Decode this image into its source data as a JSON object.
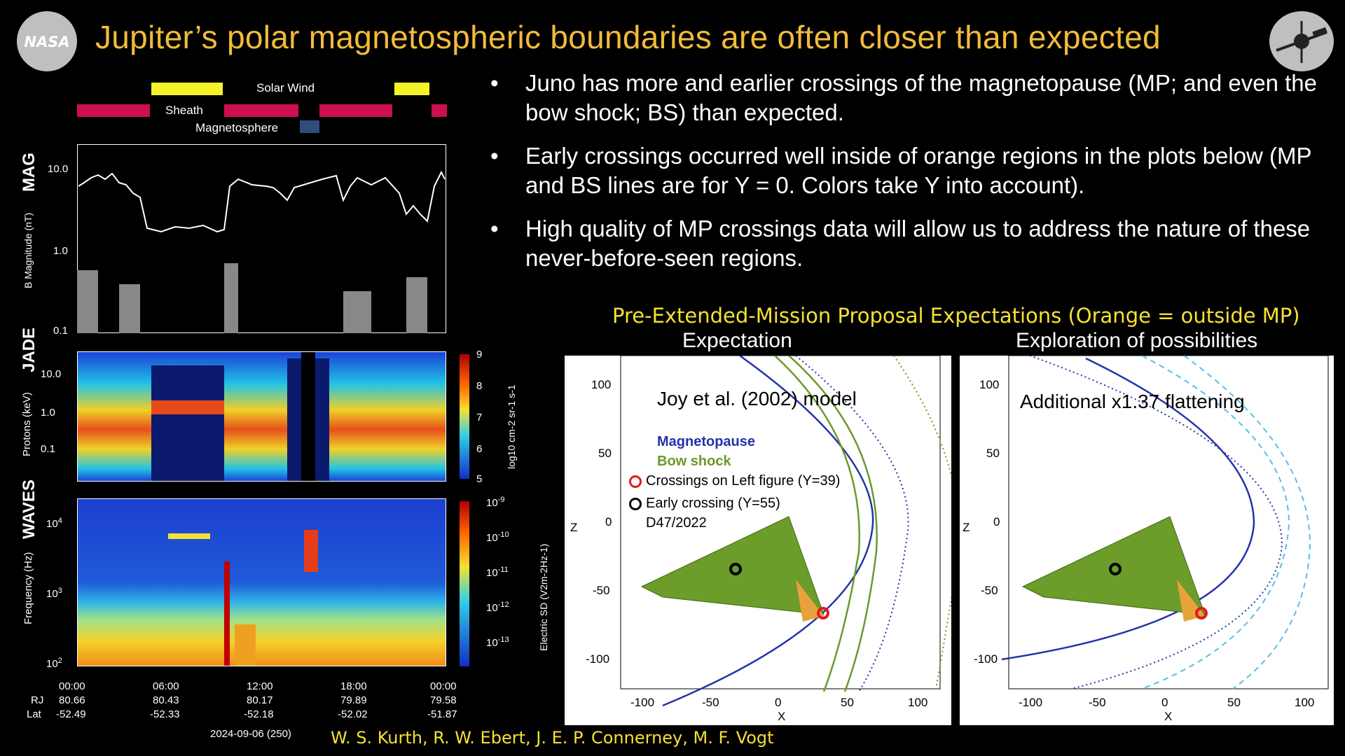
{
  "title": "Jupiter’s polar magnetospheric boundaries are often closer than expected",
  "logos": {
    "nasa": "NASA",
    "juno_icon": "juno-spacecraft-icon"
  },
  "bullets": [
    "Juno has more and earlier crossings of the magnetopause (MP; and even the bow shock; BS) than expected.",
    "Early crossings occurred well inside of orange regions in the plots below (MP and BS lines are for Y = 0. Colors take Y into account).",
    "High quality of MP crossings data will allow us to address the nature of these never-before-seen regions."
  ],
  "regions": {
    "solar_wind": "Solar Wind",
    "sheath": "Sheath",
    "magnetosphere": "Magnetosphere",
    "colors": {
      "solar_wind": "#f5f22a",
      "sheath": "#cc0f4e",
      "magnetosphere": "#2f4d7a"
    }
  },
  "left_panels": {
    "mag": {
      "name": "MAG",
      "ylabel": "B Magnitude (nT)",
      "ticks": [
        "10.0",
        "1.0",
        "0.1"
      ]
    },
    "jade": {
      "name": "JADE",
      "ylabel": "Protons (keV)",
      "ticks": [
        "10.0",
        "1.0",
        "0.1"
      ],
      "colorbar_ticks": [
        "9",
        "8",
        "7",
        "6",
        "5"
      ],
      "colorbar_label": "log10 cm-2 sr-1 s-1"
    },
    "waves": {
      "name": "WAVES",
      "ylabel": "Frequency (Hz)",
      "ticks": [
        "10",
        "10",
        "10"
      ],
      "tick_exps": [
        "4",
        "3",
        "2"
      ],
      "colorbar_ticks": [
        "10",
        "10",
        "10",
        "10",
        "10"
      ],
      "colorbar_exps": [
        "-9",
        "-10",
        "-11",
        "-12",
        "-13"
      ],
      "colorbar_label": "Electric SD (V2m-2Hz-1)"
    },
    "time_axis": {
      "times": [
        "00:00",
        "06:00",
        "12:00",
        "18:00",
        "00:00"
      ],
      "rj": [
        "80.66",
        "80.43",
        "80.17",
        "79.89",
        "79.58"
      ],
      "lat": [
        "-52.49",
        "-52.33",
        "-52.18",
        "-52.02",
        "-51.87"
      ],
      "rj_label": "RJ",
      "lat_label": "Lat",
      "date": "2024-09-06 (250)"
    }
  },
  "authors": "W. S. Kurth, R. W. Ebert, J. E. P. Connerney, M. F. Vogt",
  "right_section": {
    "header": "Pre-Extended-Mission Proposal Expectations (Orange = outside MP)",
    "left_title": "Expectation",
    "right_title": "Exploration of possibilities",
    "left_model": "Joy et al. (2002) model",
    "right_model": "Additional x1.37 flattening",
    "legend": {
      "magnetopause": "Magnetopause",
      "bow_shock": "Bow shock",
      "red_crossings": "Crossings on Left figure (Y=39)",
      "black_crossing": "Early crossing (Y=55)",
      "black_crossing_date": "D47/2022"
    },
    "axis": {
      "yticks": [
        "100",
        "50",
        "0",
        "-50",
        "-100"
      ],
      "xticks": [
        "-100",
        "-50",
        "0",
        "50",
        "100"
      ],
      "xlabel": "X",
      "ylabel": "Z"
    },
    "colors": {
      "magnetopause": "#2233aa",
      "bow_shock": "#6a9a2c",
      "orbit": "#5c8a1e",
      "orange": "#e8a23c"
    }
  }
}
